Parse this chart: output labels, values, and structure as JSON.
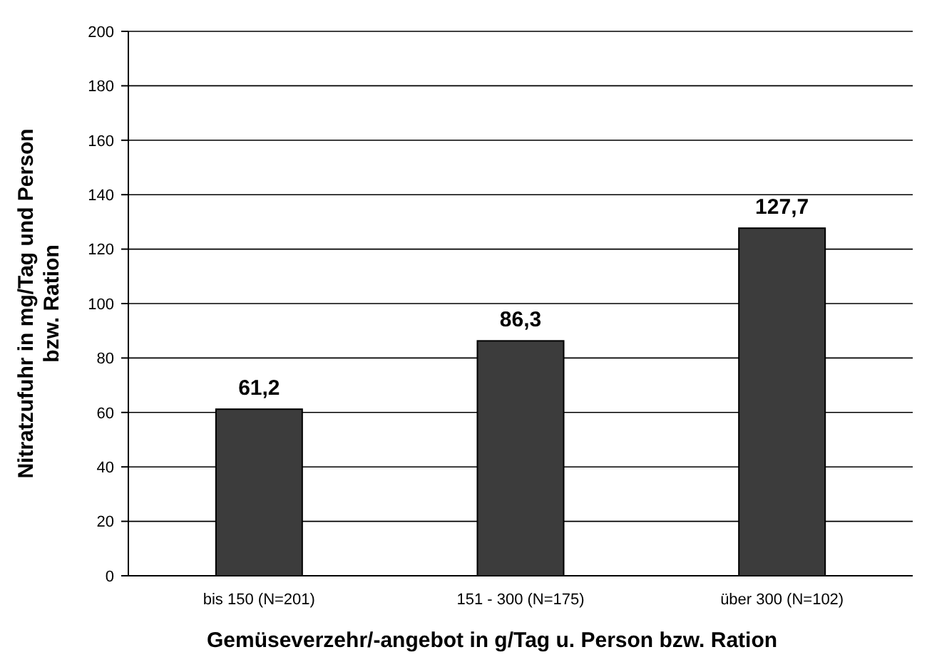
{
  "chart_data": {
    "type": "bar",
    "xlabel": "Gemüseverzehr/-angebot in g/Tag u. Person bzw. Ration",
    "ylabel": "Nitratzufuhr in mg/Tag und Person bzw. Ration",
    "categories": [
      "bis 150 (N=201)",
      "151 - 300 (N=175)",
      "über 300 (N=102)"
    ],
    "values": [
      61.2,
      86.3,
      127.7
    ],
    "value_labels": [
      "61,2",
      "86,3",
      "127,7"
    ],
    "color": "#3c3c3c",
    "ylim": [
      0,
      200
    ],
    "yticks": [
      0,
      20,
      40,
      60,
      80,
      100,
      120,
      140,
      160,
      180,
      200
    ],
    "grid": "y"
  }
}
